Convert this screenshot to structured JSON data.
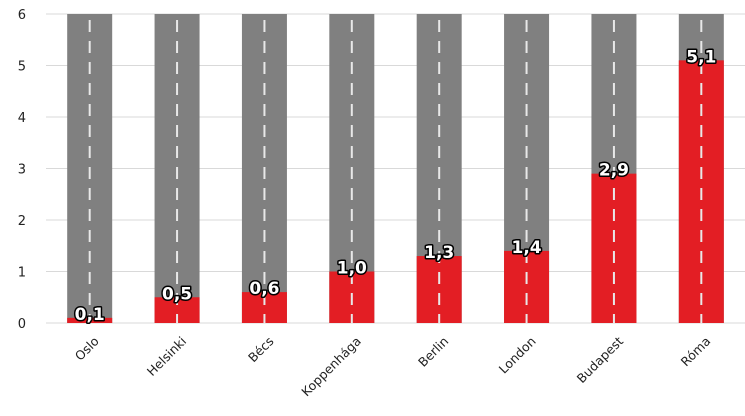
{
  "chart_data": {
    "type": "bar",
    "categories": [
      "Oslo",
      "Helsinki",
      "Bécs",
      "Koppenhága",
      "Berlin",
      "London",
      "Budapest",
      "Róma"
    ],
    "values": [
      0.1,
      0.5,
      0.6,
      1.0,
      1.3,
      1.4,
      2.9,
      5.1
    ],
    "value_labels": [
      "0,1",
      "0,5",
      "0,6",
      "1,0",
      "1,3",
      "1,4",
      "2,9",
      "5,1"
    ],
    "highlight_category": "Budapest",
    "ylim": [
      0,
      6
    ],
    "yticks": [
      "0",
      "1",
      "2",
      "3",
      "4",
      "5",
      "6"
    ],
    "title": "",
    "xlabel": "",
    "ylabel": "",
    "grid": true,
    "colors": {
      "value_bar": "#e31e24",
      "background_bar": "#808080",
      "lane_marking": "#e8e8e8",
      "highlight_label": "#e31e24",
      "text": "#222222",
      "gridline": "#d9d9d9"
    }
  }
}
